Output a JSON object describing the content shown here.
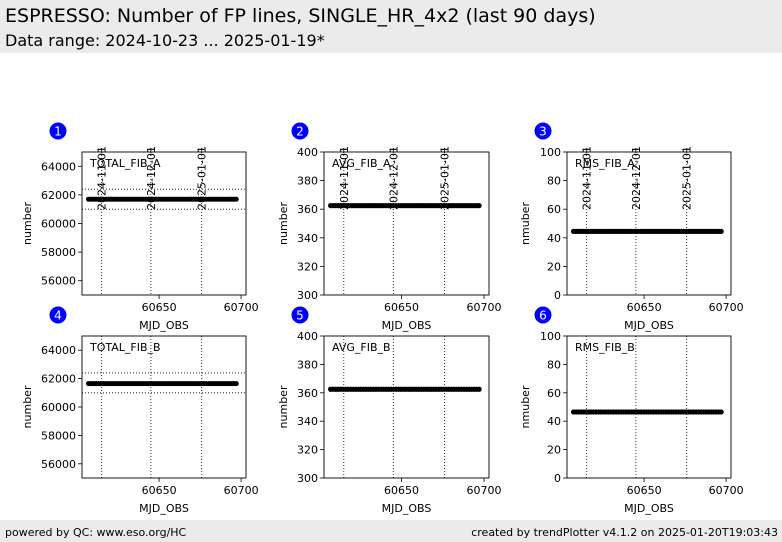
{
  "header": {
    "title": "ESPRESSO: Number of FP lines, SINGLE_HR_4x2 (last 90 days)",
    "subtitle": "Data range: 2024-10-23 ... 2025-01-19*"
  },
  "footer": {
    "left": "powered by QC: www.eso.org/HC",
    "right": "created by trendPlotter v4.1.2 on 2025-01-20T19:03:43"
  },
  "colors": {
    "badge": "#0000ff",
    "badge_text": "#ffffff",
    "marker": "#000000",
    "header_bg": "#ebebeb"
  },
  "top_date_labels": [
    {
      "label": "2024-11-01",
      "mjd": 60615
    },
    {
      "label": "2024-12-01",
      "mjd": 60645
    },
    {
      "label": "2025-01-01",
      "mjd": 60676
    }
  ],
  "chart_data": [
    {
      "type": "scatter",
      "badge": "1",
      "panel_label": "TOTAL_FIB_A",
      "xlabel": "MJD_OBS",
      "ylabel": "number",
      "xlim": [
        60603,
        60703
      ],
      "ylim": [
        55000,
        65000
      ],
      "xticks": [
        60650,
        60700
      ],
      "yticks": [
        56000,
        58000,
        60000,
        62000,
        64000
      ],
      "hlines": [
        61000,
        62400
      ],
      "x": [
        60607,
        60697
      ],
      "y_constant": 61700
    },
    {
      "type": "scatter",
      "badge": "2",
      "panel_label": "AVG_FIB_A",
      "xlabel": "MJD_OBS",
      "ylabel": "number",
      "xlim": [
        60603,
        60703
      ],
      "ylim": [
        300,
        400
      ],
      "xticks": [
        60650,
        60700
      ],
      "yticks": [
        300,
        320,
        340,
        360,
        380,
        400
      ],
      "hlines": [],
      "x": [
        60607,
        60697
      ],
      "y_constant": 362.5
    },
    {
      "type": "scatter",
      "badge": "3",
      "panel_label": "RMS_FIB_A",
      "xlabel": "MJD_OBS",
      "ylabel": "nmuber",
      "xlim": [
        60603,
        60703
      ],
      "ylim": [
        0,
        100
      ],
      "xticks": [
        60650,
        60700
      ],
      "yticks": [
        0,
        20,
        40,
        60,
        80,
        100
      ],
      "hlines": [],
      "x": [
        60607,
        60697
      ],
      "y_constant": 44.5
    },
    {
      "type": "scatter",
      "badge": "4",
      "panel_label": "TOTAL_FIB_B",
      "xlabel": "MJD_OBS",
      "ylabel": "number",
      "xlim": [
        60603,
        60703
      ],
      "ylim": [
        55000,
        65000
      ],
      "xticks": [
        60650,
        60700
      ],
      "yticks": [
        56000,
        58000,
        60000,
        62000,
        64000
      ],
      "hlines": [
        61000,
        62400
      ],
      "x": [
        60607,
        60697
      ],
      "y_constant": 61650
    },
    {
      "type": "scatter",
      "badge": "5",
      "panel_label": "AVG_FIB_B",
      "xlabel": "MJD_OBS",
      "ylabel": "number",
      "xlim": [
        60603,
        60703
      ],
      "ylim": [
        300,
        400
      ],
      "xticks": [
        60650,
        60700
      ],
      "yticks": [
        300,
        320,
        340,
        360,
        380,
        400
      ],
      "hlines": [],
      "x": [
        60607,
        60697
      ],
      "y_constant": 362.5
    },
    {
      "type": "scatter",
      "badge": "6",
      "panel_label": "RMS_FIB_B",
      "xlabel": "MJD_OBS",
      "ylabel": "nmuber",
      "xlim": [
        60603,
        60703
      ],
      "ylim": [
        0,
        100
      ],
      "xticks": [
        60650,
        60700
      ],
      "yticks": [
        0,
        20,
        40,
        60,
        80,
        100
      ],
      "hlines": [],
      "x": [
        60607,
        60697
      ],
      "y_constant": 46.5
    }
  ]
}
